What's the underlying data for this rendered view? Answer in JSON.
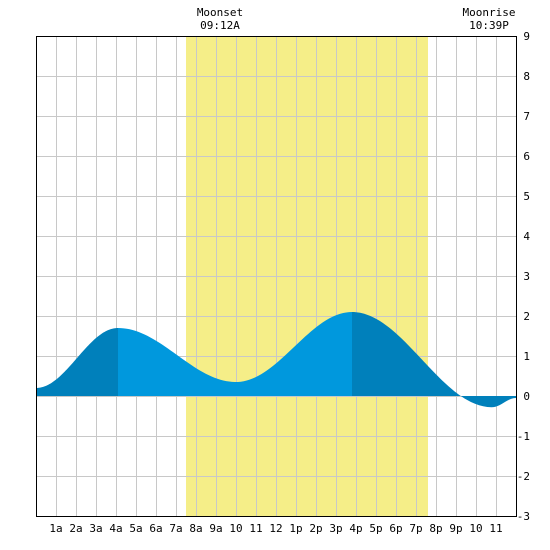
{
  "chart_data": {
    "type": "area",
    "title": "",
    "xlabel": "",
    "ylabel": "",
    "x_unit": "hour of day",
    "xlim": [
      0,
      24
    ],
    "ylim": [
      -3,
      9
    ],
    "grid": true,
    "y_ticks": [
      -3,
      -2,
      -1,
      0,
      1,
      2,
      3,
      4,
      5,
      6,
      7,
      8,
      9
    ],
    "x_ticks": [
      {
        "x": 1,
        "label": "1a"
      },
      {
        "x": 2,
        "label": "2a"
      },
      {
        "x": 3,
        "label": "3a"
      },
      {
        "x": 4,
        "label": "4a"
      },
      {
        "x": 5,
        "label": "5a"
      },
      {
        "x": 6,
        "label": "6a"
      },
      {
        "x": 7,
        "label": "7a"
      },
      {
        "x": 8,
        "label": "8a"
      },
      {
        "x": 9,
        "label": "9a"
      },
      {
        "x": 10,
        "label": "10"
      },
      {
        "x": 11,
        "label": "11"
      },
      {
        "x": 12,
        "label": "12"
      },
      {
        "x": 13,
        "label": "1p"
      },
      {
        "x": 14,
        "label": "2p"
      },
      {
        "x": 15,
        "label": "3p"
      },
      {
        "x": 16,
        "label": "4p"
      },
      {
        "x": 17,
        "label": "5p"
      },
      {
        "x": 18,
        "label": "6p"
      },
      {
        "x": 19,
        "label": "7p"
      },
      {
        "x": 20,
        "label": "8p"
      },
      {
        "x": 21,
        "label": "9p"
      },
      {
        "x": 22,
        "label": "10"
      },
      {
        "x": 23,
        "label": "11"
      }
    ],
    "tide_extrema": [
      {
        "x": 0,
        "y": 0.2
      },
      {
        "x": 4.1,
        "y": 1.7
      },
      {
        "x": 10.0,
        "y": 0.35
      },
      {
        "x": 15.8,
        "y": 2.1
      },
      {
        "x": 22.8,
        "y": -0.28
      },
      {
        "x": 24,
        "y": -0.05
      }
    ],
    "band_splits": [
      4.1,
      15.8
    ],
    "moon_band": {
      "start": 7.5,
      "end": 19.6
    },
    "moonset": {
      "label": "Moonset",
      "time": "09:12A",
      "x": 9.2
    },
    "moonrise": {
      "label": "Moonrise",
      "time": "10:39P",
      "x": 22.65
    },
    "colors": {
      "dark_fill": "#0080bb",
      "light_fill": "#0098dd",
      "moon_band": "#f5ee88",
      "grid": "#c8c8c8",
      "frame": "#000000"
    }
  }
}
